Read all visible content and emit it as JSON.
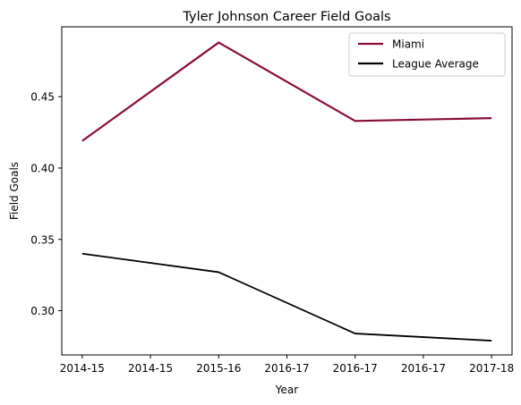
{
  "chart_data": {
    "type": "line",
    "title": "Tyler Johnson  Career Field Goals",
    "xlabel": "Year",
    "ylabel": "Field Goals",
    "x": [
      0,
      1,
      2,
      3
    ],
    "x_tick_labels": [
      "2014-15",
      "2014-15",
      "2015-16",
      "2016-17",
      "2016-17",
      "2016-17",
      "2017-18"
    ],
    "x_tick_positions": [
      0,
      0.5,
      1,
      1.5,
      2,
      2.5,
      3
    ],
    "y_ticks": [
      0.3,
      0.35,
      0.4,
      0.45
    ],
    "y_tick_labels": [
      "0.30",
      "0.35",
      "0.40",
      "0.45"
    ],
    "xlim": [
      -0.15,
      3.15
    ],
    "ylim": [
      0.269,
      0.499
    ],
    "grid": false,
    "legend_position": "top-right",
    "series": [
      {
        "name": "Miami",
        "color": "#8B0A3A",
        "values": [
          0.419,
          0.488,
          0.433,
          0.435
        ]
      },
      {
        "name": "League Average",
        "color": "#000000",
        "values": [
          0.34,
          0.327,
          0.284,
          0.279
        ]
      }
    ]
  }
}
